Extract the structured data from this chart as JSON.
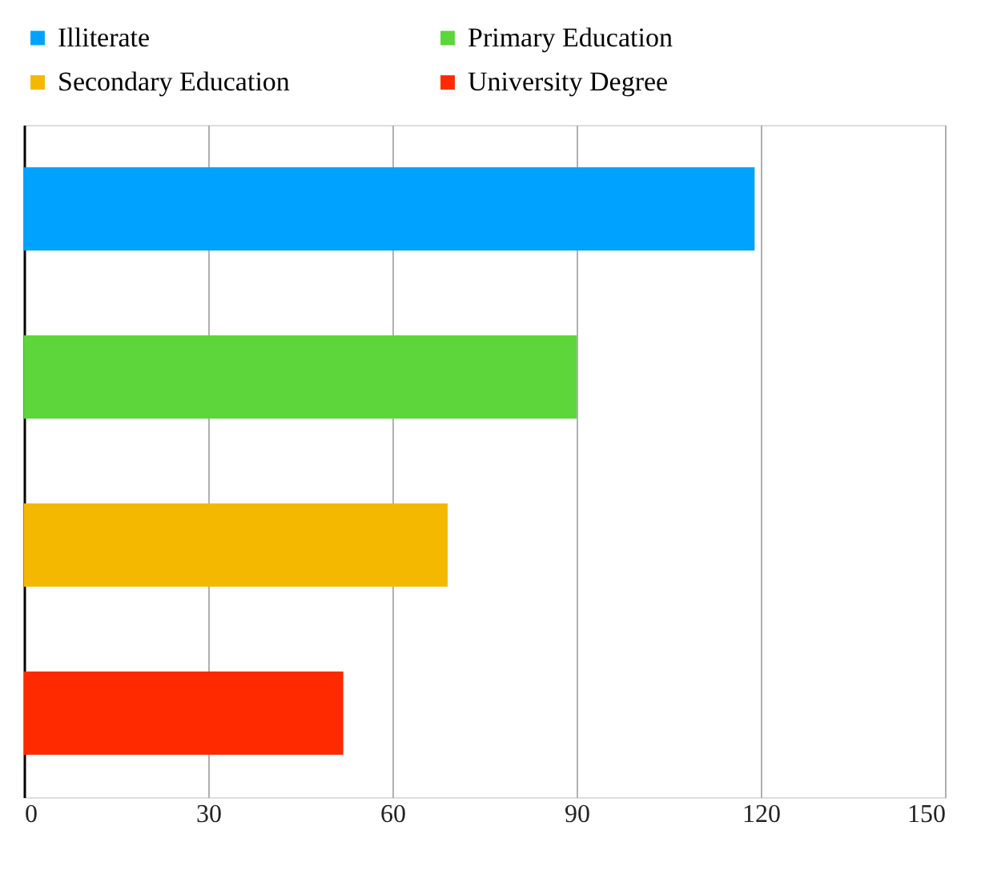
{
  "chart_data": {
    "type": "bar",
    "orientation": "horizontal",
    "categories": [
      null,
      null,
      null,
      null
    ],
    "series": [
      {
        "name": "Illiterate",
        "color": "#00a2ff",
        "values": [
          119,
          null,
          null,
          null
        ]
      },
      {
        "name": "Primary Education",
        "color": "#5cd63a",
        "values": [
          null,
          90,
          null,
          null
        ]
      },
      {
        "name": "Secondary Education",
        "color": "#f5b800",
        "values": [
          null,
          null,
          69,
          null
        ]
      },
      {
        "name": "University Degree",
        "color": "#ff2a00",
        "values": [
          null,
          null,
          null,
          52
        ]
      }
    ],
    "xlim": [
      0,
      150
    ],
    "xticks": [
      0,
      30,
      60,
      90,
      120,
      150
    ],
    "grid": "x",
    "legend": "top",
    "tick_labels": "x"
  }
}
